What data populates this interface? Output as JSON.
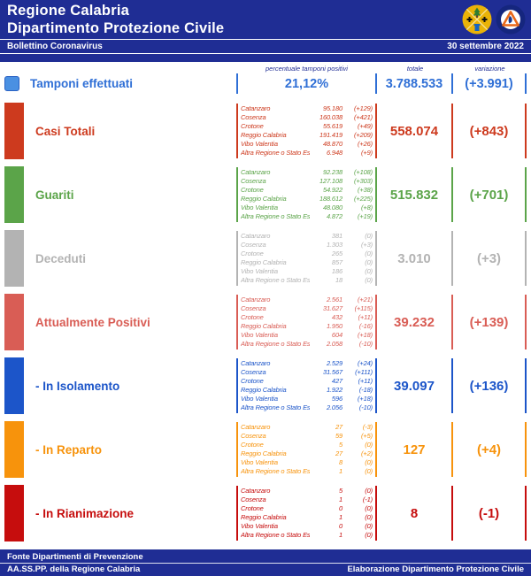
{
  "page": {
    "navy": "#1f2d94"
  },
  "header": {
    "title_line1": "Regione Calabria",
    "title_line2": "Dipartimento Protezione Civile",
    "bulletin_label": "Bollettino Coronavirus",
    "date": "30 settembre 2022"
  },
  "columns": {
    "details_header": "percentuale tamponi positivi",
    "total_header": "totale",
    "variation_header": "variazione"
  },
  "tamponi": {
    "label": "Tamponi effettuati",
    "percent_positive": "21,12%",
    "total": "3.788.533",
    "variation": "(+3.991)",
    "color": "#2f6fd6",
    "square_color": "#4a90e2"
  },
  "rows": [
    {
      "id": "casi-totali",
      "label": "Casi Totali",
      "color": "#cd3a1e",
      "total": "558.074",
      "variation": "(+843)",
      "provinces": [
        {
          "name": "Catanzaro",
          "value": "95.180",
          "delta": "(+129)"
        },
        {
          "name": "Cosenza",
          "value": "160.038",
          "delta": "(+421)"
        },
        {
          "name": "Crotone",
          "value": "55.619",
          "delta": "(+49)"
        },
        {
          "name": "Reggio Calabria",
          "value": "191.419",
          "delta": "(+209)"
        },
        {
          "name": "Vibo Valentia",
          "value": "48.870",
          "delta": "(+26)"
        },
        {
          "name": "Altra Regione o Stato Estero",
          "value": "6.948",
          "delta": "(+9)"
        }
      ]
    },
    {
      "id": "guariti",
      "label": "Guariti",
      "color": "#5ba449",
      "total": "515.832",
      "variation": "(+701)",
      "provinces": [
        {
          "name": "Catanzaro",
          "value": "92.238",
          "delta": "(+108)"
        },
        {
          "name": "Cosenza",
          "value": "127.108",
          "delta": "(+303)"
        },
        {
          "name": "Crotone",
          "value": "54.922",
          "delta": "(+38)"
        },
        {
          "name": "Reggio Calabria",
          "value": "188.612",
          "delta": "(+225)"
        },
        {
          "name": "Vibo Valentia",
          "value": "48.080",
          "delta": "(+8)"
        },
        {
          "name": "Altra Regione o Stato Estero",
          "value": "4.872",
          "delta": "(+19)"
        }
      ]
    },
    {
      "id": "deceduti",
      "label": "Deceduti",
      "color": "#b3b3b3",
      "total": "3.010",
      "variation": "(+3)",
      "provinces": [
        {
          "name": "Catanzaro",
          "value": "381",
          "delta": "(0)"
        },
        {
          "name": "Cosenza",
          "value": "1.303",
          "delta": "(+3)"
        },
        {
          "name": "Crotone",
          "value": "265",
          "delta": "(0)"
        },
        {
          "name": "Reggio Calabria",
          "value": "857",
          "delta": "(0)"
        },
        {
          "name": "Vibo Valentia",
          "value": "186",
          "delta": "(0)"
        },
        {
          "name": "Altra Regione o Stato Estero",
          "value": "18",
          "delta": "(0)"
        }
      ]
    },
    {
      "id": "attualmente-positivi",
      "label": "Attualmente Positivi",
      "color": "#d95d55",
      "total": "39.232",
      "variation": "(+139)",
      "provinces": [
        {
          "name": "Catanzaro",
          "value": "2.561",
          "delta": "(+21)"
        },
        {
          "name": "Cosenza",
          "value": "31.627",
          "delta": "(+115)"
        },
        {
          "name": "Crotone",
          "value": "432",
          "delta": "(+11)"
        },
        {
          "name": "Reggio Calabria",
          "value": "1.950",
          "delta": "(-16)"
        },
        {
          "name": "Vibo Valentia",
          "value": "604",
          "delta": "(+18)"
        },
        {
          "name": "Altra Regione o Stato Estero",
          "value": "2.058",
          "delta": "(-10)"
        }
      ]
    },
    {
      "id": "in-isolamento",
      "label": "- In Isolamento",
      "color": "#1c55c9",
      "total": "39.097",
      "variation": "(+136)",
      "provinces": [
        {
          "name": "Catanzaro",
          "value": "2.529",
          "delta": "(+24)"
        },
        {
          "name": "Cosenza",
          "value": "31.567",
          "delta": "(+111)"
        },
        {
          "name": "Crotone",
          "value": "427",
          "delta": "(+11)"
        },
        {
          "name": "Reggio Calabria",
          "value": "1.922",
          "delta": "(-18)"
        },
        {
          "name": "Vibo Valentia",
          "value": "596",
          "delta": "(+18)"
        },
        {
          "name": "Altra Regione o Stato Estero",
          "value": "2.056",
          "delta": "(-10)"
        }
      ]
    },
    {
      "id": "in-reparto",
      "label": "- In Reparto",
      "color": "#f7930c",
      "total": "127",
      "variation": "(+4)",
      "provinces": [
        {
          "name": "Catanzaro",
          "value": "27",
          "delta": "(-3)"
        },
        {
          "name": "Cosenza",
          "value": "59",
          "delta": "(+5)"
        },
        {
          "name": "Crotone",
          "value": "5",
          "delta": "(0)"
        },
        {
          "name": "Reggio Calabria",
          "value": "27",
          "delta": "(+2)"
        },
        {
          "name": "Vibo Valentia",
          "value": "8",
          "delta": "(0)"
        },
        {
          "name": "Altra Regione o Stato Estero",
          "value": "1",
          "delta": "(0)"
        }
      ]
    },
    {
      "id": "in-rianimazione",
      "label": "- In Rianimazione",
      "color": "#c60d0d",
      "total": "8",
      "variation": "(-1)",
      "provinces": [
        {
          "name": "Catanzaro",
          "value": "5",
          "delta": "(0)"
        },
        {
          "name": "Cosenza",
          "value": "1",
          "delta": "(-1)"
        },
        {
          "name": "Crotone",
          "value": "0",
          "delta": "(0)"
        },
        {
          "name": "Reggio Calabria",
          "value": "1",
          "delta": "(0)"
        },
        {
          "name": "Vibo Valentia",
          "value": "0",
          "delta": "(0)"
        },
        {
          "name": "Altra Regione o Stato Estero",
          "value": "1",
          "delta": "(0)"
        }
      ]
    }
  ],
  "footer": {
    "source_line1": "Fonte Dipartimenti di Prevenzione",
    "source_line2": "AA.SS.PP.  della Regione Calabria",
    "elaboration": "Elaborazione Dipartimento Protezione Civile"
  },
  "icons": {
    "calabria_logo": "calabria-coat-of-arms",
    "protezione_civile_logo": "protezione-civile-emblem"
  }
}
